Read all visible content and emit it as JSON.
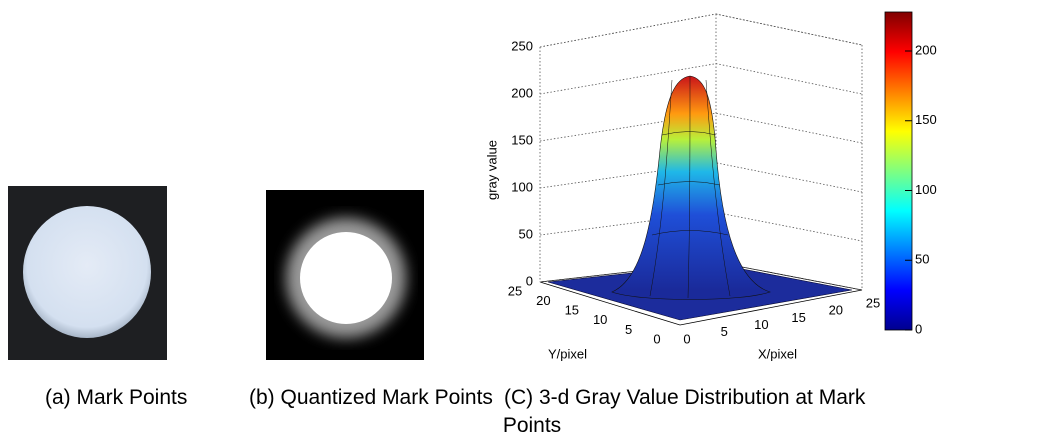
{
  "panels": {
    "a": {
      "caption": "(a) Mark Points"
    },
    "b": {
      "caption": "(b) Quantized Mark Points"
    },
    "c": {
      "caption": [
        "(C) 3-d Gray Value Distribution at Mark",
        "Points"
      ],
      "z_label": "gray value",
      "x_label": "X/pixel",
      "y_label": "Y/pixel",
      "z_ticks": [
        0,
        50,
        100,
        150,
        200,
        250
      ],
      "x_ticks": [
        0,
        5,
        10,
        15,
        20,
        25
      ],
      "y_ticks": [
        0,
        5,
        10,
        15,
        20,
        25
      ],
      "colorbar_ticks": [
        0,
        50,
        100,
        150,
        200
      ]
    }
  }
}
